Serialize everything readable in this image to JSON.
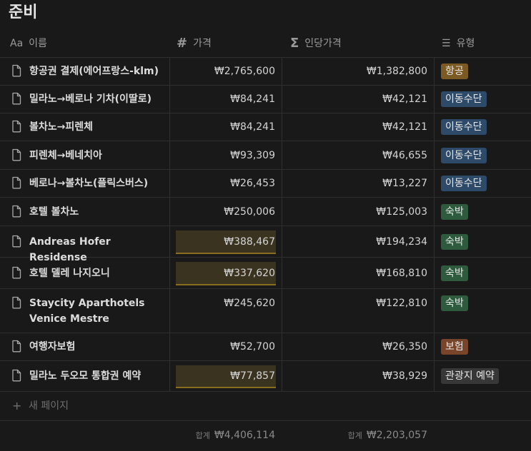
{
  "title": "준비",
  "columns": {
    "name": {
      "icon": "Aa",
      "label": "이름"
    },
    "price": {
      "icon": "#",
      "label": "가격"
    },
    "per_person": {
      "icon": "Σ",
      "label": "인당가격"
    },
    "type": {
      "icon": "☰",
      "label": "유형"
    }
  },
  "rows": [
    {
      "name": "항공권 결제(에어프랑스-klm)",
      "price": "₩2,765,600",
      "per_person": "₩1,382,800",
      "type": "항공",
      "type_color": "#7c5a24",
      "highlight": false
    },
    {
      "name": "밀라노→베로나 기차(이딸로)",
      "price": "₩84,241",
      "per_person": "₩42,121",
      "type": "이동수단",
      "type_color": "#2e4a69",
      "highlight": false
    },
    {
      "name": "볼차노→피렌체",
      "price": "₩84,241",
      "per_person": "₩42,121",
      "type": "이동수단",
      "type_color": "#2e4a69",
      "highlight": false
    },
    {
      "name": "피렌체→베네치아",
      "price": "₩93,309",
      "per_person": "₩46,655",
      "type": "이동수단",
      "type_color": "#2e4a69",
      "highlight": false
    },
    {
      "name": "베로나→볼차노(플릭스버스)",
      "price": "₩26,453",
      "per_person": "₩13,227",
      "type": "이동수단",
      "type_color": "#2e4a69",
      "highlight": false
    },
    {
      "name": "호텔 볼차노",
      "price": "₩250,006",
      "per_person": "₩125,003",
      "type": "숙박",
      "type_color": "#2e5b3d",
      "highlight": false
    },
    {
      "name": "Andreas Hofer Residense",
      "price": "₩388,467",
      "per_person": "₩194,234",
      "type": "숙박",
      "type_color": "#2e5b3d",
      "highlight": true
    },
    {
      "name": "호텔 델레 나지오니",
      "price": "₩337,620",
      "per_person": "₩168,810",
      "type": "숙박",
      "type_color": "#2e5b3d",
      "highlight": true
    },
    {
      "name": "Staycity Aparthotels Venice Mestre",
      "price": "₩245,620",
      "per_person": "₩122,810",
      "type": "숙박",
      "type_color": "#2e5b3d",
      "highlight": false
    },
    {
      "name": "여행자보험",
      "price": "₩52,700",
      "per_person": "₩26,350",
      "type": "보험",
      "type_color": "#78452a",
      "highlight": false
    },
    {
      "name": "밀라노 두오모 통합권 예약",
      "price": "₩77,857",
      "per_person": "₩38,929",
      "type": "관광지 예약",
      "type_color": "#373737",
      "highlight": true
    }
  ],
  "new_page": {
    "icon": "+",
    "label": "새 페이지"
  },
  "totals": {
    "label": "합계",
    "price": "₩4,406,114",
    "per_person": "₩2,203,057"
  }
}
